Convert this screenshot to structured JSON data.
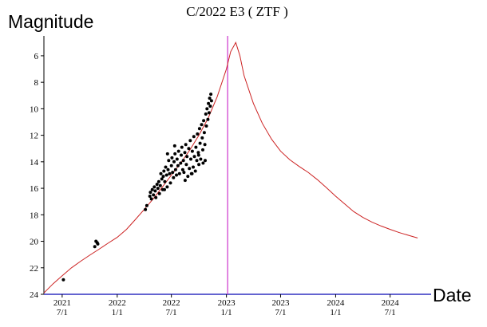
{
  "chart_data": {
    "type": "scatter",
    "title": "C/2022 E3 ( ZTF )",
    "ylabel": "Magnitude",
    "xlabel": "Date",
    "y_axis_inverted": true,
    "ylim": [
      24,
      4.5
    ],
    "yticks": [
      6,
      8,
      10,
      12,
      14,
      16,
      18,
      20,
      22,
      24
    ],
    "xlim": [
      "2021-05-01",
      "2024-11-15"
    ],
    "xticks": [
      {
        "date": "2021-07-01",
        "line1": "2021",
        "line2": "7/1"
      },
      {
        "date": "2022-01-01",
        "line1": "2022",
        "line2": "1/1"
      },
      {
        "date": "2022-07-01",
        "line1": "2022",
        "line2": "7/1"
      },
      {
        "date": "2023-01-01",
        "line1": "2023",
        "line2": "1/1"
      },
      {
        "date": "2023-07-01",
        "line1": "2023",
        "line2": "7/1"
      },
      {
        "date": "2024-01-01",
        "line1": "2024",
        "line2": "1/1"
      },
      {
        "date": "2024-07-01",
        "line1": "2024",
        "line2": "7/1"
      }
    ],
    "marker_line": {
      "date": "2023-01-05",
      "color": "#cc33cc"
    },
    "grid": false,
    "series": [
      {
        "kind": "curve",
        "color": "#cc2222",
        "points": [
          [
            "2021-05-01",
            23.9
          ],
          [
            "2021-06-01",
            23.2
          ],
          [
            "2021-07-01",
            22.6
          ],
          [
            "2021-08-01",
            22.0
          ],
          [
            "2021-09-01",
            21.5
          ],
          [
            "2021-10-01",
            21.05
          ],
          [
            "2021-11-01",
            20.6
          ],
          [
            "2021-12-01",
            20.15
          ],
          [
            "2022-01-01",
            19.7
          ],
          [
            "2022-02-01",
            19.1
          ],
          [
            "2022-03-01",
            18.4
          ],
          [
            "2022-04-01",
            17.6
          ],
          [
            "2022-05-01",
            16.8
          ],
          [
            "2022-06-01",
            15.9
          ],
          [
            "2022-07-01",
            15.0
          ],
          [
            "2022-08-01",
            14.1
          ],
          [
            "2022-09-01",
            13.1
          ],
          [
            "2022-10-01",
            12.0
          ],
          [
            "2022-11-01",
            10.7
          ],
          [
            "2022-12-01",
            9.1
          ],
          [
            "2023-01-01",
            7.0
          ],
          [
            "2023-01-15",
            5.7
          ],
          [
            "2023-02-01",
            5.0
          ],
          [
            "2023-02-15",
            6.0
          ],
          [
            "2023-03-01",
            7.5
          ],
          [
            "2023-04-01",
            9.6
          ],
          [
            "2023-05-01",
            11.1
          ],
          [
            "2023-06-01",
            12.3
          ],
          [
            "2023-07-01",
            13.2
          ],
          [
            "2023-08-01",
            13.85
          ],
          [
            "2023-09-01",
            14.35
          ],
          [
            "2023-10-01",
            14.8
          ],
          [
            "2023-11-01",
            15.35
          ],
          [
            "2023-12-01",
            15.95
          ],
          [
            "2024-01-01",
            16.6
          ],
          [
            "2024-02-01",
            17.2
          ],
          [
            "2024-03-01",
            17.75
          ],
          [
            "2024-04-01",
            18.2
          ],
          [
            "2024-05-01",
            18.55
          ],
          [
            "2024-06-01",
            18.85
          ],
          [
            "2024-07-01",
            19.1
          ],
          [
            "2024-08-01",
            19.35
          ],
          [
            "2024-09-01",
            19.55
          ],
          [
            "2024-10-01",
            19.75
          ]
        ]
      },
      {
        "kind": "observations",
        "color": "#000000",
        "points": [
          [
            "2021-07-05",
            22.9
          ],
          [
            "2021-10-18",
            20.4
          ],
          [
            "2021-10-22",
            20.0
          ],
          [
            "2021-10-26",
            20.1
          ],
          [
            "2021-10-28",
            20.2
          ],
          [
            "2022-04-05",
            17.6
          ],
          [
            "2022-04-10",
            17.3
          ],
          [
            "2022-04-20",
            16.6
          ],
          [
            "2022-04-22",
            16.3
          ],
          [
            "2022-04-25",
            16.8
          ],
          [
            "2022-04-28",
            16.1
          ],
          [
            "2022-05-02",
            16.5
          ],
          [
            "2022-05-05",
            15.9
          ],
          [
            "2022-05-08",
            16.2
          ],
          [
            "2022-05-10",
            16.7
          ],
          [
            "2022-05-14",
            15.7
          ],
          [
            "2022-05-17",
            16.0
          ],
          [
            "2022-05-20",
            15.5
          ],
          [
            "2022-05-22",
            16.4
          ],
          [
            "2022-05-25",
            15.8
          ],
          [
            "2022-05-27",
            14.9
          ],
          [
            "2022-05-30",
            15.3
          ],
          [
            "2022-06-02",
            16.1
          ],
          [
            "2022-06-04",
            15.1
          ],
          [
            "2022-06-06",
            14.7
          ],
          [
            "2022-06-09",
            15.5
          ],
          [
            "2022-06-12",
            14.4
          ],
          [
            "2022-06-15",
            15.0
          ],
          [
            "2022-06-17",
            15.9
          ],
          [
            "2022-06-20",
            14.6
          ],
          [
            "2022-06-22",
            13.9
          ],
          [
            "2022-06-25",
            14.9
          ],
          [
            "2022-06-28",
            15.6
          ],
          [
            "2022-07-01",
            14.3
          ],
          [
            "2022-07-03",
            13.7
          ],
          [
            "2022-07-05",
            14.8
          ],
          [
            "2022-07-08",
            15.2
          ],
          [
            "2022-07-10",
            14.0
          ],
          [
            "2022-07-13",
            13.4
          ],
          [
            "2022-07-15",
            14.6
          ],
          [
            "2022-07-18",
            15.0
          ],
          [
            "2022-07-20",
            13.8
          ],
          [
            "2022-07-23",
            14.3
          ],
          [
            "2022-07-25",
            13.2
          ],
          [
            "2022-07-28",
            14.9
          ],
          [
            "2022-08-01",
            14.1
          ],
          [
            "2022-08-03",
            13.5
          ],
          [
            "2022-08-05",
            12.9
          ],
          [
            "2022-08-08",
            14.6
          ],
          [
            "2022-08-10",
            13.9
          ],
          [
            "2022-08-12",
            14.8
          ],
          [
            "2022-08-15",
            13.3
          ],
          [
            "2022-08-18",
            12.7
          ],
          [
            "2022-08-20",
            14.2
          ],
          [
            "2022-08-22",
            13.6
          ],
          [
            "2022-08-25",
            15.1
          ],
          [
            "2022-08-28",
            13.0
          ],
          [
            "2022-08-30",
            14.5
          ],
          [
            "2022-09-02",
            12.4
          ],
          [
            "2022-09-04",
            13.8
          ],
          [
            "2022-09-06",
            14.9
          ],
          [
            "2022-09-09",
            13.2
          ],
          [
            "2022-09-12",
            14.4
          ],
          [
            "2022-09-14",
            12.1
          ],
          [
            "2022-09-16",
            13.6
          ],
          [
            "2022-09-19",
            14.7
          ],
          [
            "2022-09-21",
            12.9
          ],
          [
            "2022-09-24",
            13.9
          ],
          [
            "2022-09-26",
            11.9
          ],
          [
            "2022-09-29",
            13.3
          ],
          [
            "2022-10-01",
            14.2
          ],
          [
            "2022-10-03",
            11.5
          ],
          [
            "2022-10-05",
            12.6
          ],
          [
            "2022-10-07",
            13.8
          ],
          [
            "2022-10-10",
            11.2
          ],
          [
            "2022-10-12",
            12.2
          ],
          [
            "2022-10-14",
            13.1
          ],
          [
            "2022-10-17",
            10.9
          ],
          [
            "2022-10-19",
            11.8
          ],
          [
            "2022-10-21",
            12.7
          ],
          [
            "2022-10-24",
            10.4
          ],
          [
            "2022-10-26",
            11.3
          ],
          [
            "2022-10-28",
            10.0
          ],
          [
            "2022-10-31",
            10.8
          ],
          [
            "2022-11-02",
            9.6
          ],
          [
            "2022-11-04",
            10.3
          ],
          [
            "2022-11-06",
            9.2
          ],
          [
            "2022-11-08",
            9.8
          ],
          [
            "2022-11-10",
            8.9
          ],
          [
            "2022-11-12",
            9.4
          ],
          [
            "2022-06-18",
            13.4
          ],
          [
            "2022-07-12",
            12.8
          ],
          [
            "2022-08-16",
            15.4
          ],
          [
            "2022-09-08",
            14.9
          ],
          [
            "2022-09-30",
            13.5
          ],
          [
            "2022-10-15",
            14.1
          ],
          [
            "2022-10-22",
            13.9
          ],
          [
            "2022-06-08",
            16.1
          ]
        ]
      }
    ]
  }
}
